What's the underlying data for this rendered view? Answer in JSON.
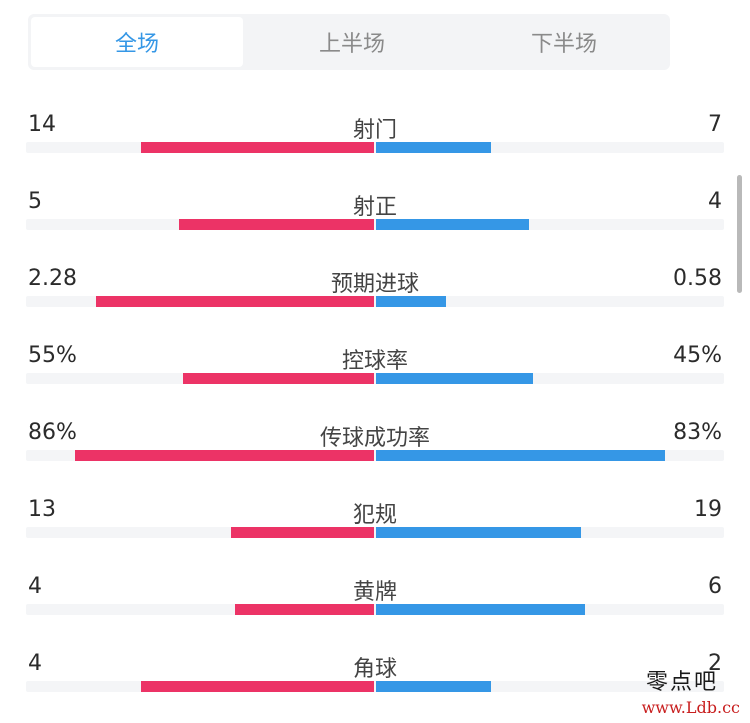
{
  "tabs": [
    {
      "label": "全场",
      "active": true
    },
    {
      "label": "上半场",
      "active": false
    },
    {
      "label": "下半场",
      "active": false
    }
  ],
  "colors": {
    "home": "#ec3366",
    "away": "#3597e6",
    "tab_active": "#3597e6"
  },
  "stats": [
    {
      "label": "射门",
      "home": "14",
      "away": "7"
    },
    {
      "label": "射正",
      "home": "5",
      "away": "4"
    },
    {
      "label": "预期进球",
      "home": "2.28",
      "away": "0.58"
    },
    {
      "label": "控球率",
      "home": "55%",
      "away": "45%"
    },
    {
      "label": "传球成功率",
      "home": "86%",
      "away": "83%"
    },
    {
      "label": "犯规",
      "home": "13",
      "away": "19"
    },
    {
      "label": "黄牌",
      "home": "4",
      "away": "6"
    },
    {
      "label": "角球",
      "home": "4",
      "away": "2"
    }
  ],
  "bar_fractions": [
    {
      "home": 0.67,
      "away": 0.33
    },
    {
      "home": 0.56,
      "away": 0.44
    },
    {
      "home": 0.8,
      "away": 0.2
    },
    {
      "home": 0.55,
      "away": 0.45
    },
    {
      "home": 0.86,
      "away": 0.83
    },
    {
      "home": 0.41,
      "away": 0.59
    },
    {
      "home": 0.4,
      "away": 0.6
    },
    {
      "home": 0.67,
      "away": 0.33
    }
  ],
  "watermark": {
    "logo": "零点吧",
    "url": "www.Ldb.cc"
  }
}
